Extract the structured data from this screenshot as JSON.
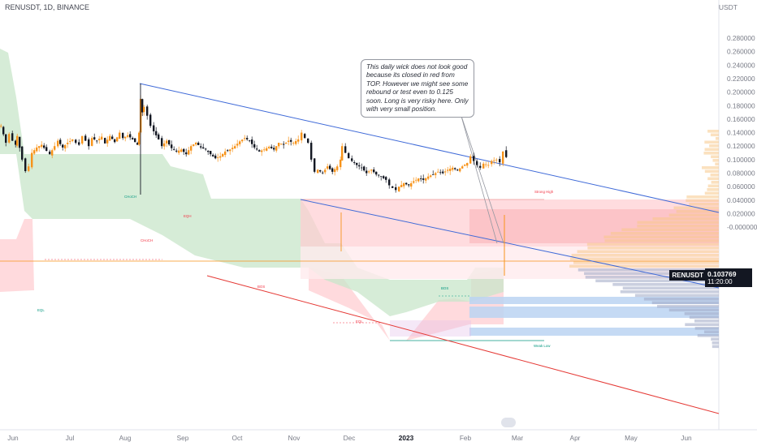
{
  "header": {
    "symbol": "RENUSDT, 1D, BINANCE"
  },
  "currency": "USDT",
  "note": "This daily wick does not look good because its closed in red from TOP. However we might see some rebound or test even to 0.125 soon. Long is very risky here. Only with very small position.",
  "price_tag": {
    "symbol": "RENUSDT",
    "price": "0.103769",
    "countdown": "11:20:00"
  },
  "colors": {
    "up": "#f7931a",
    "down": "#131722",
    "support_zone": "#c8e6c9",
    "resistance_zone": "#ffcdd2",
    "demand_box": "#bbd3f2",
    "trendline_blue": "#3f6ad8",
    "trendline_red": "#e53935",
    "annotation_green": "#089981",
    "annotation_red": "#f23645"
  },
  "chart_data": {
    "type": "candlestick",
    "title": "RENUSDT, 1D, BINANCE",
    "y_axis": {
      "range": [
        -0.002,
        0.3
      ],
      "ticks": [
        "0.280000",
        "0.260000",
        "0.240000",
        "0.220000",
        "0.200000",
        "0.180000",
        "0.160000",
        "0.140000",
        "0.120000",
        "0.100000",
        "0.080000",
        "0.060000",
        "0.040000",
        "0.020000",
        "-0.000000"
      ],
      "unit": "USDT"
    },
    "x_axis": {
      "ticks": [
        "Jun",
        "Jul",
        "Aug",
        "Sep",
        "Oct",
        "Nov",
        "Dec",
        "2023",
        "Feb",
        "Mar",
        "Apr",
        "May",
        "Jun"
      ],
      "bold": "2023"
    },
    "last_price": 0.103769,
    "price_path": [
      [
        0,
        0.15
      ],
      [
        6,
        0.125
      ],
      [
        10,
        0.138
      ],
      [
        14,
        0.128
      ],
      [
        18,
        0.122
      ],
      [
        20,
        0.135
      ],
      [
        26,
        0.1
      ],
      [
        30,
        0.083
      ],
      [
        34,
        0.09
      ],
      [
        38,
        0.11
      ],
      [
        44,
        0.118
      ],
      [
        50,
        0.122
      ],
      [
        56,
        0.113
      ],
      [
        60,
        0.108
      ],
      [
        66,
        0.12
      ],
      [
        70,
        0.128
      ],
      [
        76,
        0.118
      ],
      [
        82,
        0.125
      ],
      [
        88,
        0.13
      ],
      [
        92,
        0.125
      ],
      [
        96,
        0.122
      ],
      [
        100,
        0.135
      ],
      [
        104,
        0.128
      ],
      [
        108,
        0.12
      ],
      [
        112,
        0.132
      ],
      [
        118,
        0.128
      ],
      [
        124,
        0.134
      ],
      [
        128,
        0.124
      ],
      [
        134,
        0.135
      ],
      [
        140,
        0.126
      ],
      [
        146,
        0.14
      ],
      [
        150,
        0.132
      ],
      [
        156,
        0.136
      ],
      [
        162,
        0.13
      ],
      [
        168,
        0.122
      ],
      [
        170,
        0.14
      ],
      [
        172,
        0.19
      ],
      [
        174,
        0.17
      ],
      [
        176,
        0.178
      ],
      [
        180,
        0.165
      ],
      [
        184,
        0.15
      ],
      [
        188,
        0.142
      ],
      [
        194,
        0.13
      ],
      [
        198,
        0.12
      ],
      [
        204,
        0.128
      ],
      [
        210,
        0.117
      ],
      [
        216,
        0.112
      ],
      [
        222,
        0.115
      ],
      [
        228,
        0.108
      ],
      [
        234,
        0.12
      ],
      [
        240,
        0.125
      ],
      [
        246,
        0.118
      ],
      [
        252,
        0.115
      ],
      [
        258,
        0.108
      ],
      [
        264,
        0.102
      ],
      [
        270,
        0.105
      ],
      [
        276,
        0.112
      ],
      [
        282,
        0.115
      ],
      [
        288,
        0.12
      ],
      [
        294,
        0.127
      ],
      [
        300,
        0.132
      ],
      [
        306,
        0.128
      ],
      [
        312,
        0.118
      ],
      [
        318,
        0.112
      ],
      [
        324,
        0.115
      ],
      [
        330,
        0.119
      ],
      [
        336,
        0.115
      ],
      [
        342,
        0.125
      ],
      [
        348,
        0.122
      ],
      [
        354,
        0.128
      ],
      [
        360,
        0.125
      ],
      [
        366,
        0.13
      ],
      [
        370,
        0.14
      ],
      [
        374,
        0.132
      ],
      [
        378,
        0.125
      ],
      [
        382,
        0.1
      ],
      [
        386,
        0.082
      ],
      [
        390,
        0.085
      ],
      [
        396,
        0.08
      ],
      [
        402,
        0.09
      ],
      [
        408,
        0.082
      ],
      [
        414,
        0.09
      ],
      [
        418,
        0.1
      ],
      [
        420,
        0.12
      ],
      [
        424,
        0.11
      ],
      [
        428,
        0.102
      ],
      [
        432,
        0.098
      ],
      [
        438,
        0.092
      ],
      [
        444,
        0.088
      ],
      [
        450,
        0.08
      ],
      [
        456,
        0.085
      ],
      [
        462,
        0.078
      ],
      [
        468,
        0.075
      ],
      [
        474,
        0.07
      ],
      [
        478,
        0.062
      ],
      [
        482,
        0.058
      ],
      [
        486,
        0.055
      ],
      [
        490,
        0.06
      ],
      [
        496,
        0.065
      ],
      [
        502,
        0.062
      ],
      [
        508,
        0.068
      ],
      [
        514,
        0.072
      ],
      [
        520,
        0.07
      ],
      [
        526,
        0.075
      ],
      [
        532,
        0.078
      ],
      [
        538,
        0.082
      ],
      [
        544,
        0.08
      ],
      [
        550,
        0.085
      ],
      [
        556,
        0.088
      ],
      [
        562,
        0.084
      ],
      [
        568,
        0.09
      ],
      [
        574,
        0.095
      ],
      [
        578,
        0.105
      ],
      [
        582,
        0.098
      ],
      [
        586,
        0.092
      ],
      [
        590,
        0.088
      ],
      [
        594,
        0.094
      ],
      [
        600,
        0.092
      ],
      [
        604,
        0.098
      ],
      [
        610,
        0.1
      ],
      [
        614,
        0.096
      ],
      [
        618,
        0.112
      ],
      [
        622,
        0.103769
      ]
    ],
    "annotations": [
      {
        "text": "Strong High",
        "color": "red"
      },
      {
        "text": "Weak Low",
        "color": "green"
      },
      {
        "text": "BOS",
        "color": "red"
      },
      {
        "text": "BOS",
        "color": "green"
      },
      {
        "text": "CHoCH",
        "color": "green"
      },
      {
        "text": "CHoCH",
        "color": "red"
      },
      {
        "text": "EQH",
        "color": "red"
      },
      {
        "text": "EQL",
        "color": "green"
      },
      {
        "text": "EQL",
        "color": "red"
      }
    ]
  }
}
